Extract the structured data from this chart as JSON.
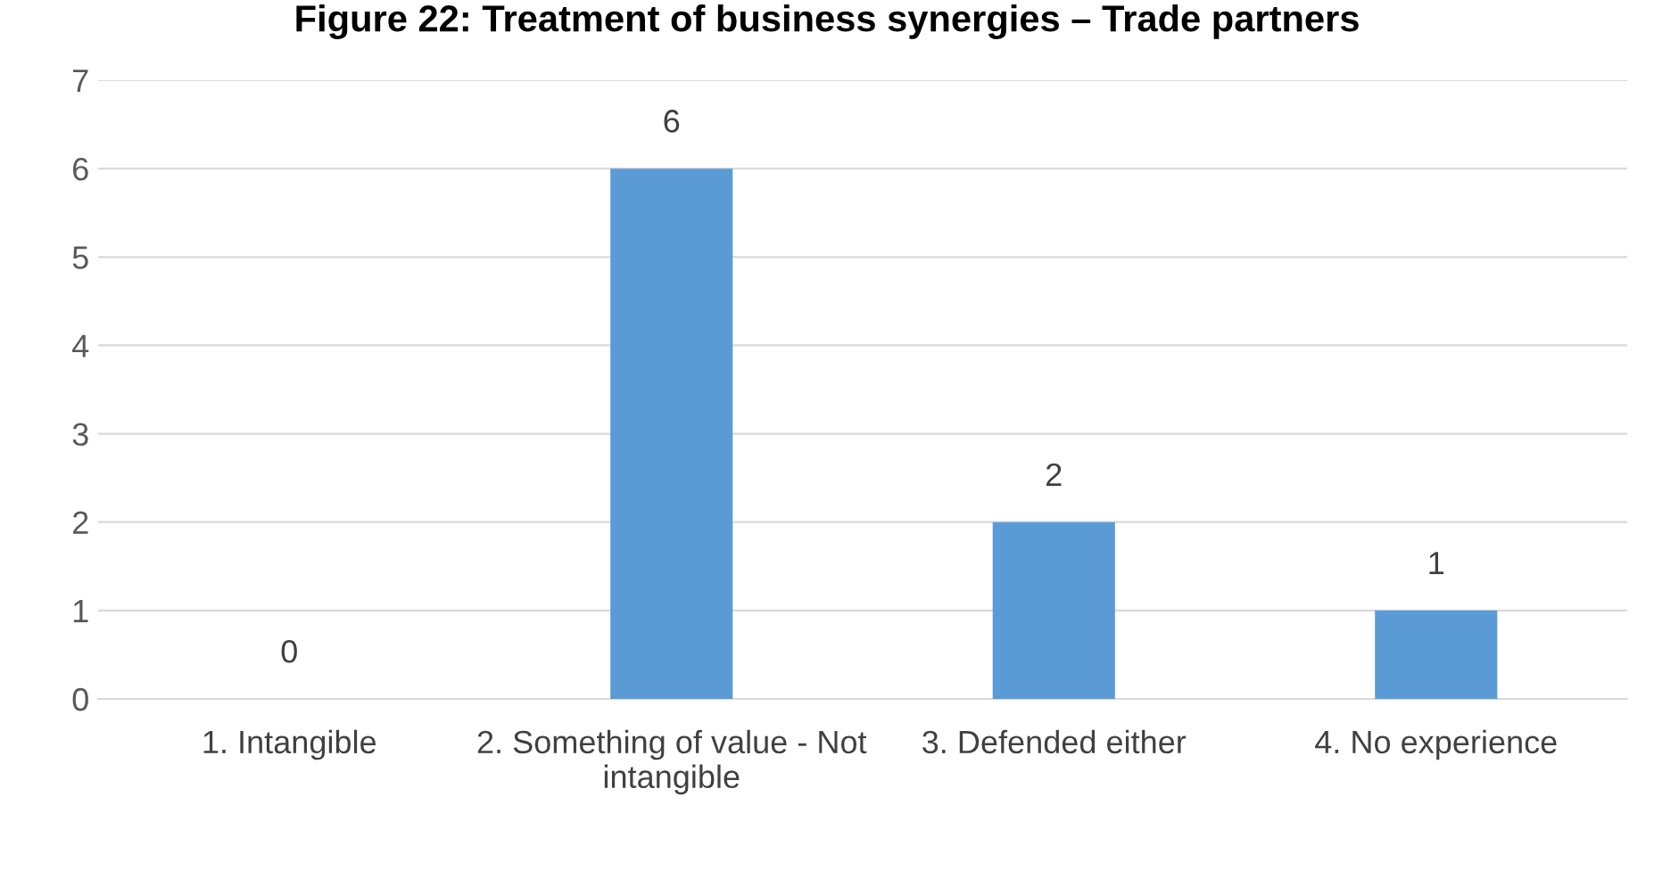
{
  "chart_data": {
    "type": "bar",
    "title": "Figure 22: Treatment of business synergies – Trade partners",
    "categories": [
      "1. Intangible",
      "2. Something of value - Not intangible",
      "3. Defended either",
      "4. No experience"
    ],
    "values": [
      0,
      6,
      2,
      1
    ],
    "color": "#5b9bd5",
    "ylim": [
      0,
      7
    ],
    "yticks": [
      0,
      1,
      2,
      3,
      4,
      5,
      6,
      7
    ],
    "grid": "y",
    "data_labels": true
  }
}
